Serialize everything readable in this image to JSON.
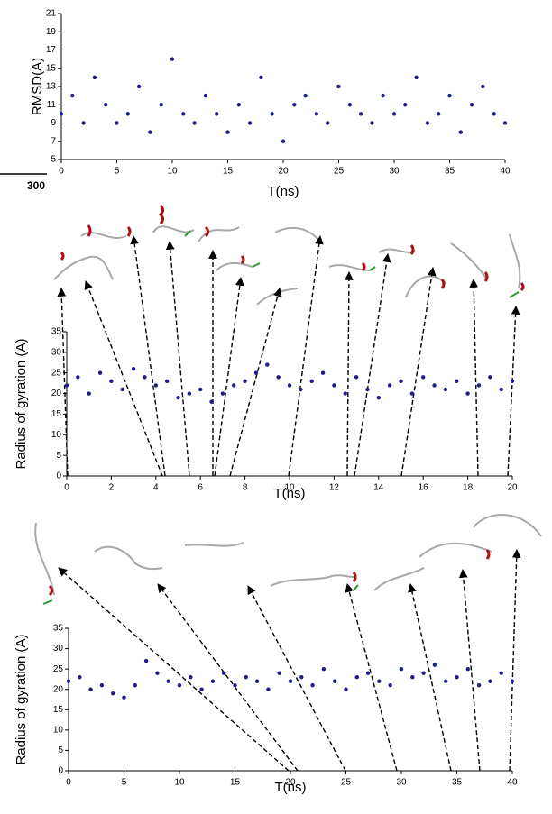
{
  "chart_data": [
    {
      "type": "scatter",
      "side_label": "300",
      "ylabel": "RMSD(A)",
      "xlabel": "T(ns)",
      "color": "#1c1c8c",
      "xlim": [
        0,
        40
      ],
      "xticks": [
        0,
        5,
        10,
        15,
        20,
        25,
        30,
        35,
        40
      ],
      "ylim": [
        5,
        21
      ],
      "yticks": [
        5,
        7,
        9,
        11,
        13,
        15,
        17,
        19,
        21
      ],
      "x": [
        0,
        1,
        2,
        3,
        4,
        5,
        6,
        7,
        8,
        9,
        10,
        11,
        12,
        13,
        14,
        15,
        16,
        17,
        18,
        19,
        20,
        21,
        22,
        23,
        24,
        25,
        26,
        27,
        28,
        29,
        30,
        31,
        32,
        33,
        34,
        35,
        36,
        37,
        38,
        39,
        40
      ],
      "y": [
        10,
        12,
        9,
        14,
        11,
        9,
        10,
        13,
        8,
        11,
        16,
        10,
        9,
        12,
        10,
        8,
        11,
        9,
        14,
        10,
        7,
        11,
        12,
        10,
        9,
        13,
        11,
        10,
        9,
        12,
        10,
        11,
        14,
        9,
        10,
        12,
        8,
        11,
        13,
        10,
        9
      ]
    },
    {
      "type": "scatter",
      "ylabel": "Radius of gyration (A)",
      "xlabel": "T(ns)",
      "color": "#1c1c8c",
      "xlim": [
        0,
        20
      ],
      "xticks": [
        0,
        2,
        4,
        6,
        8,
        10,
        12,
        14,
        16,
        18,
        20
      ],
      "ylim": [
        0,
        35
      ],
      "yticks": [
        0,
        5,
        10,
        15,
        20,
        25,
        30,
        35
      ],
      "x": [
        0,
        0.5,
        1,
        1.5,
        2,
        2.5,
        3,
        3.5,
        4,
        4.5,
        5,
        5.5,
        6,
        6.5,
        7,
        7.5,
        8,
        8.5,
        9,
        9.5,
        10,
        10.5,
        11,
        11.5,
        12,
        12.5,
        13,
        13.5,
        14,
        14.5,
        15,
        15.5,
        16,
        16.5,
        17,
        17.5,
        18,
        18.5,
        19,
        19.5,
        20
      ],
      "y": [
        22,
        24,
        20,
        25,
        23,
        21,
        26,
        24,
        22,
        23,
        19,
        20,
        21,
        18,
        20,
        22,
        23,
        25,
        27,
        24,
        22,
        21,
        23,
        25,
        22,
        20,
        24,
        21,
        19,
        22,
        23,
        20,
        24,
        22,
        21,
        23,
        20,
        22,
        24,
        21,
        23
      ]
    },
    {
      "type": "scatter",
      "ylabel": "Radius of gyration (A)",
      "xlabel": "T(ns)",
      "color": "#1c1c8c",
      "xlim": [
        0,
        40
      ],
      "xticks": [
        0,
        5,
        10,
        15,
        20,
        25,
        30,
        35,
        40
      ],
      "ylim": [
        0,
        35
      ],
      "yticks": [
        0,
        5,
        10,
        15,
        20,
        25,
        30,
        35
      ],
      "x": [
        0,
        1,
        2,
        3,
        4,
        5,
        6,
        7,
        8,
        9,
        10,
        11,
        12,
        13,
        14,
        15,
        16,
        17,
        18,
        19,
        20,
        21,
        22,
        23,
        24,
        25,
        26,
        27,
        28,
        29,
        30,
        31,
        32,
        33,
        34,
        35,
        36,
        37,
        38,
        39,
        40
      ],
      "y": [
        22,
        23,
        20,
        21,
        19,
        18,
        21,
        27,
        24,
        22,
        21,
        23,
        20,
        22,
        24,
        21,
        23,
        22,
        20,
        24,
        22,
        23,
        21,
        25,
        22,
        20,
        23,
        24,
        22,
        21,
        25,
        23,
        24,
        26,
        22,
        23,
        25,
        21,
        22,
        24,
        22
      ]
    }
  ]
}
